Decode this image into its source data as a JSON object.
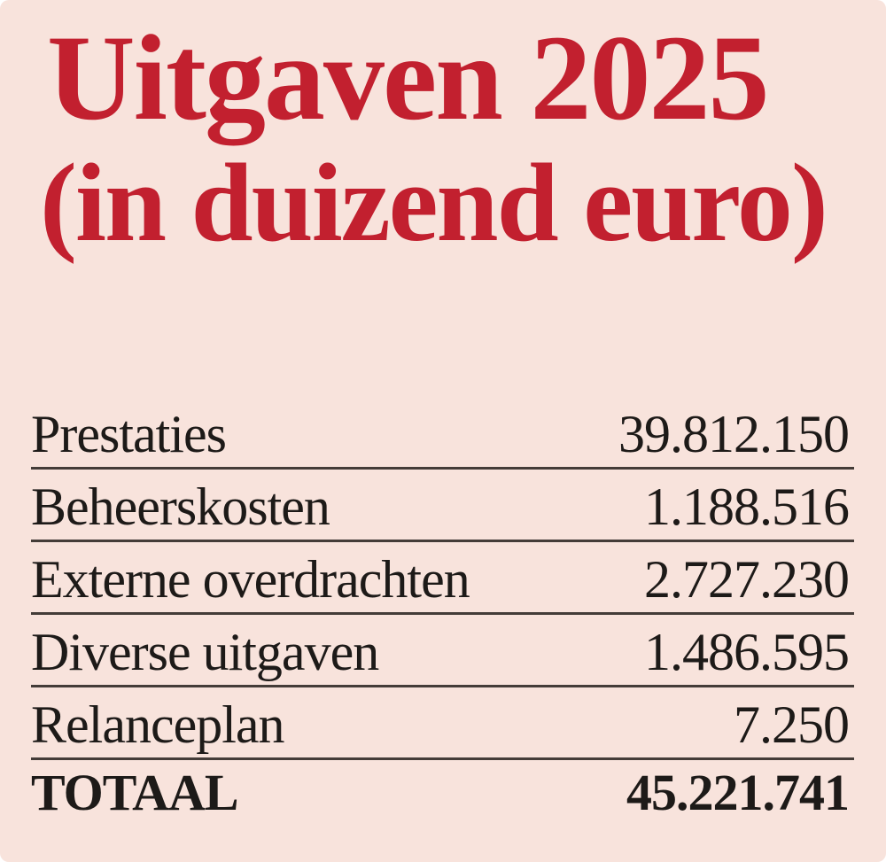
{
  "title": {
    "line1": "Uitgaven 2025",
    "line2": "(in duizend euro)"
  },
  "table": {
    "rows": [
      {
        "label": "Prestaties",
        "value": "39.812.150"
      },
      {
        "label": "Beheerskosten",
        "value": "1.188.516"
      },
      {
        "label": "Externe overdrachten",
        "value": "2.727.230"
      },
      {
        "label": "Diverse uitgaven",
        "value": "1.486.595"
      },
      {
        "label": "Relanceplan",
        "value": "7.250"
      }
    ],
    "total": {
      "label": "TOTAAL",
      "value": "45.221.741"
    }
  },
  "colors": {
    "background": "#f8e3dc",
    "accent_red": "#c2202f",
    "text": "#1d1a18",
    "rule": "#443c38"
  },
  "chart_data": {
    "type": "table",
    "title": "Uitgaven 2025",
    "subtitle": "(in duizend euro)",
    "unit": "thousand euro",
    "categories": [
      "Prestaties",
      "Beheerskosten",
      "Externe overdrachten",
      "Diverse uitgaven",
      "Relanceplan"
    ],
    "values": [
      39812150,
      1188516,
      2727230,
      1486595,
      7250
    ],
    "total": {
      "label": "TOTAAL",
      "value": 45221741
    }
  }
}
